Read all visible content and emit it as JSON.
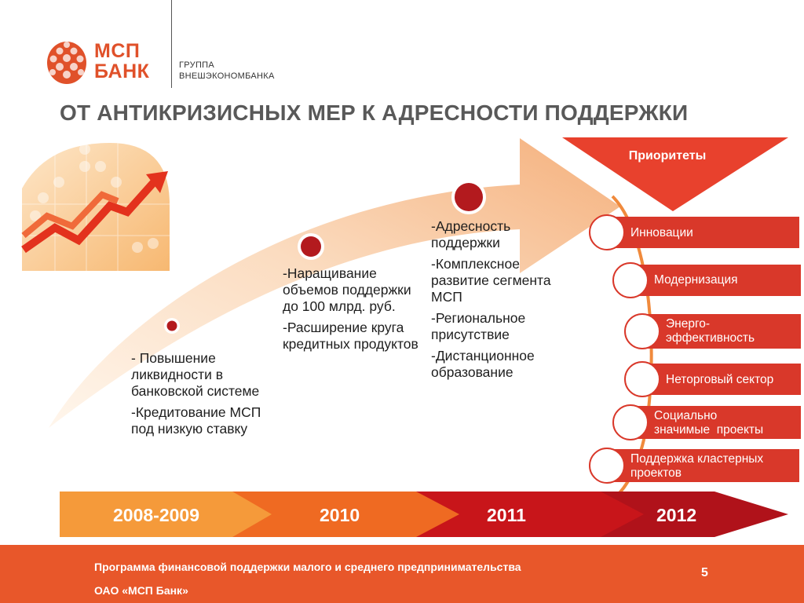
{
  "logo": {
    "name_line1": "МСП",
    "name_line2": "БАНК",
    "group_line1": "ГРУППА",
    "group_line2": "ВНЕШЭКОНОМБАНКА",
    "icon": "pine-cone-logo"
  },
  "title": "ОТ АНТИКРИЗИСНЫХ МЕР К АДРЕСНОСТИ ПОДДЕРЖКИ",
  "stages": [
    {
      "items": [
        "- Повышение ликвидности в банковской системе",
        "-Кредитование МСП под низкую ставку"
      ]
    },
    {
      "items": [
        "-Наращивание объемов поддержки до 100 млрд. руб.",
        "-Расширение круга кредитных продуктов"
      ]
    },
    {
      "items": [
        "-Адресность поддержки",
        "-Комплексное развитие сегмента МСП",
        "-Региональное присутствие",
        "-Дистанционное образование"
      ]
    }
  ],
  "priorities": {
    "label": "Приоритеты",
    "items": [
      "Инновации",
      "Модернизация",
      "Энерго-\nэффективность",
      "Неторговый сектор",
      "Социально\nзначимые  проекты",
      "Поддержка кластерных\nпроектов"
    ]
  },
  "timeline": [
    "2008-2009",
    "2010",
    "2011",
    "2012"
  ],
  "footer": {
    "line1": "Программа финансовой поддержки малого и среднего предпринимательства",
    "line2": "ОАО «МСП Банк»",
    "page": "5"
  },
  "colors": {
    "accent": "#e0512a",
    "dark_red": "#b31a1e",
    "orange": "#f0a060",
    "footer": "#e8572a"
  }
}
